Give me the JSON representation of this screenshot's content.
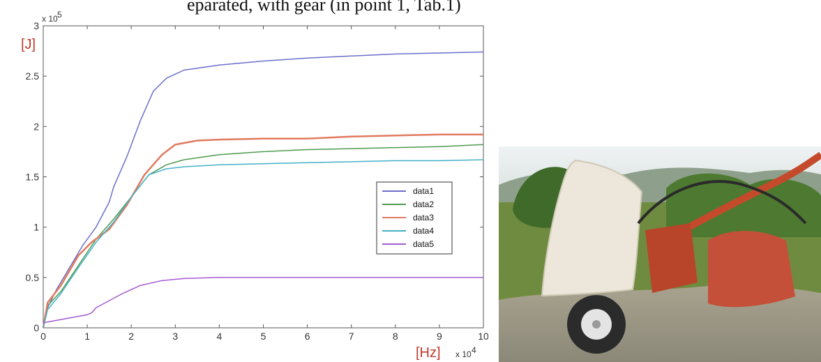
{
  "caption_fragment": "eparated, with gear (in point 1, Tab.1)",
  "chart_data": {
    "type": "line",
    "title": "",
    "xlabel": "[Hz]",
    "ylabel": "[J]",
    "x_exponent_label": "x 10",
    "x_exponent_power": "4",
    "y_exponent_label": "x 10",
    "y_exponent_power": "5",
    "xlim": [
      0,
      10
    ],
    "ylim": [
      0,
      3
    ],
    "xticks": [
      "0",
      "1",
      "2",
      "3",
      "4",
      "5",
      "6",
      "7",
      "8",
      "9",
      "10"
    ],
    "yticks": [
      "0",
      "0.5",
      "1",
      "1.5",
      "2",
      "2.5",
      "3"
    ],
    "ytick_values": [
      0,
      0.5,
      1,
      1.5,
      2,
      2.5,
      3
    ],
    "legend_position": "center-right",
    "series": [
      {
        "name": "data1",
        "color": "#6b6fc9",
        "x": [
          0,
          0.1,
          0.3,
          0.6,
          0.9,
          1.2,
          1.5,
          1.6,
          1.9,
          2.2,
          2.5,
          2.8,
          3.2,
          4,
          5,
          6,
          7,
          8,
          9,
          10
        ],
        "y": [
          0,
          0.2,
          0.38,
          0.6,
          0.82,
          1.0,
          1.25,
          1.4,
          1.7,
          2.05,
          2.35,
          2.48,
          2.56,
          2.61,
          2.65,
          2.68,
          2.7,
          2.72,
          2.73,
          2.74
        ]
      },
      {
        "name": "data2",
        "color": "#4e9a4e",
        "x": [
          0,
          0.1,
          0.4,
          0.8,
          1.2,
          1.6,
          2.0,
          2.4,
          2.8,
          3.2,
          4,
          5,
          6,
          7,
          8,
          9,
          10
        ],
        "y": [
          0,
          0.22,
          0.36,
          0.62,
          0.88,
          1.08,
          1.3,
          1.52,
          1.62,
          1.67,
          1.72,
          1.75,
          1.77,
          1.78,
          1.79,
          1.8,
          1.82
        ]
      },
      {
        "name": "data3",
        "color": "#e07a5f",
        "x": [
          0,
          0.1,
          0.4,
          0.8,
          1.1,
          1.5,
          1.9,
          2.3,
          2.7,
          3.0,
          3.5,
          4,
          5,
          6,
          7,
          8,
          9,
          10
        ],
        "y": [
          0,
          0.25,
          0.42,
          0.72,
          0.85,
          0.98,
          1.22,
          1.52,
          1.72,
          1.82,
          1.86,
          1.87,
          1.88,
          1.88,
          1.9,
          1.91,
          1.92,
          1.92
        ]
      },
      {
        "name": "data4",
        "color": "#44b0c8",
        "x": [
          0,
          0.1,
          0.4,
          0.8,
          1.2,
          1.6,
          2.0,
          2.4,
          2.8,
          3.2,
          4,
          5,
          6,
          7,
          8,
          9,
          10
        ],
        "y": [
          0,
          0.18,
          0.34,
          0.6,
          0.85,
          1.05,
          1.3,
          1.52,
          1.58,
          1.6,
          1.62,
          1.63,
          1.64,
          1.65,
          1.66,
          1.66,
          1.67
        ]
      },
      {
        "name": "data5",
        "color": "#a35bd0",
        "x": [
          0,
          0.5,
          1.0,
          1.1,
          1.2,
          1.5,
          1.8,
          2.2,
          2.7,
          3.2,
          4,
          5,
          6,
          7,
          8,
          9,
          10
        ],
        "y": [
          0.05,
          0.09,
          0.13,
          0.15,
          0.2,
          0.27,
          0.34,
          0.42,
          0.47,
          0.49,
          0.5,
          0.5,
          0.5,
          0.5,
          0.5,
          0.5,
          0.5
        ]
      }
    ]
  }
}
